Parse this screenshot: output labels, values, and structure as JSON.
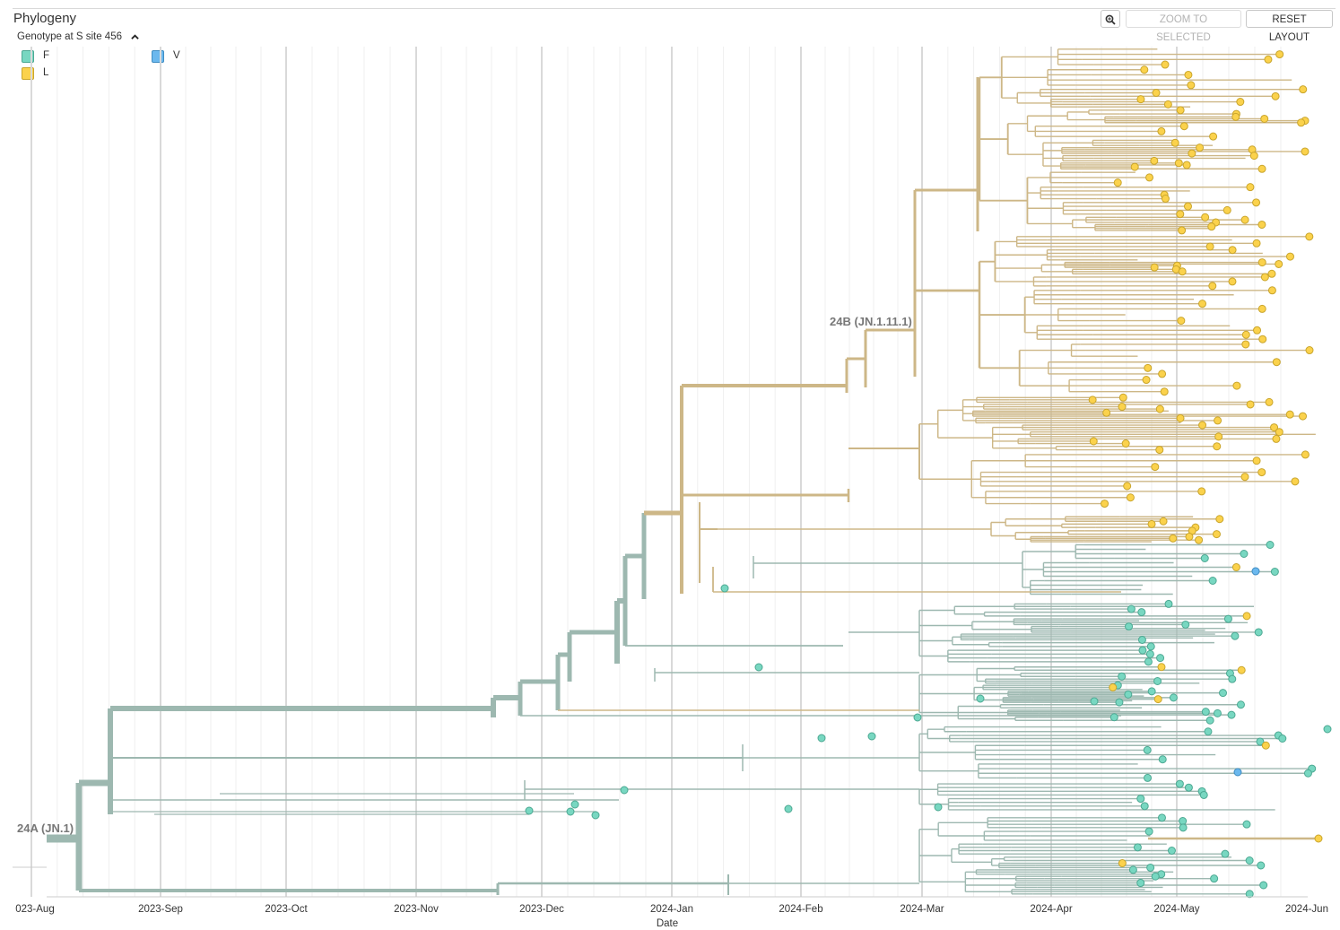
{
  "header": {
    "title": "Phylogeny",
    "zoom_to_selected": "ZOOM TO SELECTED",
    "reset_layout": "RESET LAYOUT",
    "zoom_icon": "magnifier-icon"
  },
  "legend": {
    "title": "Genotype at S site 456",
    "items": [
      {
        "label": "F",
        "color": "#78D7C1",
        "border": "#4CA892"
      },
      {
        "label": "V",
        "color": "#6BB8EE",
        "border": "#3F8CC2"
      },
      {
        "label": "L",
        "color": "#FBD24C",
        "border": "#C9A52C"
      }
    ]
  },
  "chart_data": {
    "type": "phylogenetic tree",
    "xlabel": "Date",
    "x_ticks": [
      "023-Aug",
      "2023-Sep",
      "2023-Oct",
      "2023-Nov",
      "2023-Dec",
      "2024-Jan",
      "2024-Feb",
      "2024-Mar",
      "2024-Apr",
      "2024-May",
      "2024-Jun"
    ],
    "branch_colors": {
      "F": "#9DB8B0",
      "L": "#CDB787"
    },
    "clade_labels": [
      {
        "label": "24A (JN.1)",
        "date": "2023-08-04",
        "genotype": "F"
      },
      {
        "label": "24B (JN.1.11.1)",
        "date": "2024-02-22",
        "genotype": "L"
      }
    ],
    "grid": true
  }
}
